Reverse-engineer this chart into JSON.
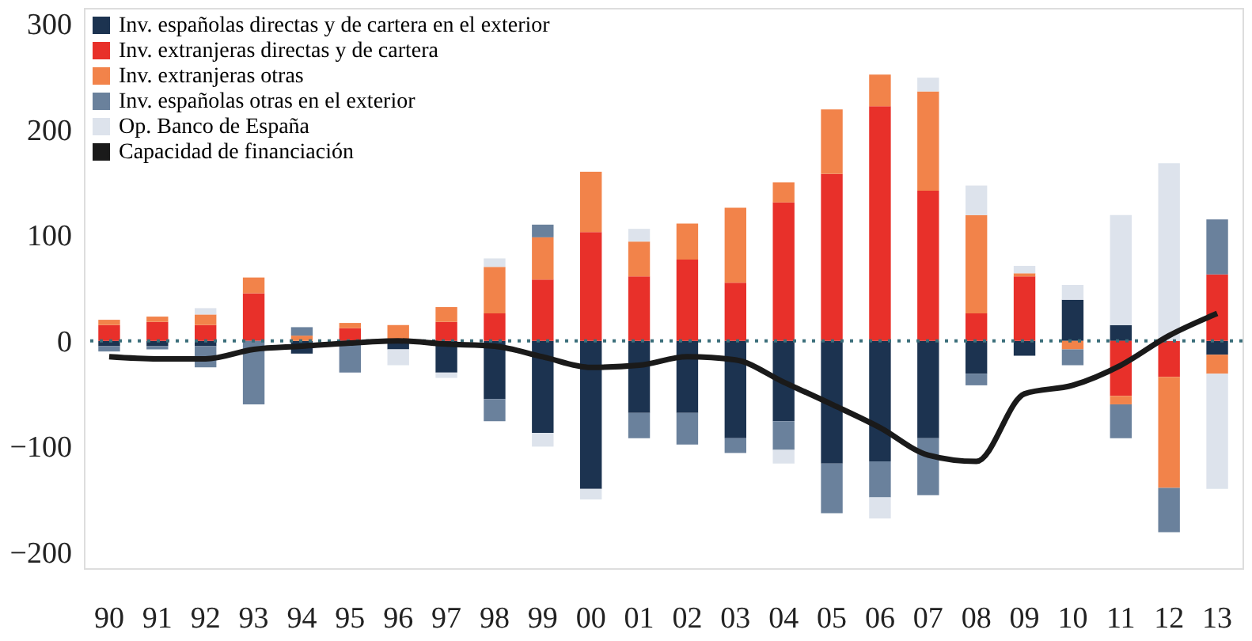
{
  "chart_data": {
    "type": "bar",
    "stacked": true,
    "categories": [
      "90",
      "91",
      "92",
      "93",
      "94",
      "95",
      "96",
      "97",
      "98",
      "99",
      "00",
      "01",
      "02",
      "03",
      "04",
      "05",
      "06",
      "07",
      "08",
      "09",
      "10",
      "11",
      "12",
      "13"
    ],
    "series": [
      {
        "name": "Inv. españolas directas y de cartera en el exterior",
        "color": "#1c3350",
        "values": [
          -5,
          -5,
          -5,
          0,
          -12,
          null,
          -8,
          -30,
          -55,
          -87,
          -140,
          -68,
          -68,
          -92,
          -76,
          -116,
          -114,
          -92,
          -31,
          -14,
          39,
          15,
          0,
          -13
        ]
      },
      {
        "name": "Inv. extranjeras directas y de cartera",
        "color": "#e8302a",
        "values": [
          15,
          18,
          15,
          45,
          0,
          12,
          null,
          18,
          26,
          58,
          103,
          61,
          77,
          55,
          131,
          158,
          222,
          142,
          26,
          61,
          0,
          -52,
          -34,
          63
        ]
      },
      {
        "name": "Inv. extranjeras otras",
        "color": "#f2834a",
        "values": [
          5,
          5,
          10,
          15,
          5,
          5,
          15,
          14,
          44,
          40,
          57,
          33,
          34,
          71,
          19,
          61,
          30,
          94,
          93,
          3,
          -8,
          -8,
          -105,
          -18
        ]
      },
      {
        "name": "Inv. españolas otras en el exterior",
        "color": "#6a819c",
        "values": [
          -5,
          -3,
          -20,
          -60,
          8,
          -30,
          0,
          0,
          -21,
          12,
          0,
          -24,
          -30,
          -14,
          -27,
          -47,
          -34,
          -54,
          -11,
          0,
          -15,
          -32,
          -42,
          52
        ]
      },
      {
        "name": "Op. Banco de España",
        "color": "#dde3ec",
        "values": [
          0,
          0,
          6,
          0,
          0,
          0,
          -15,
          -5,
          8,
          -13,
          -10,
          12,
          0,
          0,
          -13,
          0,
          -20,
          13,
          28,
          7,
          14,
          104,
          168,
          -109
        ]
      },
      {
        "name": "Capacidad de financiación",
        "type": "line",
        "color": "#1a1a1a",
        "values": [
          -15,
          -17,
          -17,
          -8,
          -5,
          -2,
          0,
          -3,
          -5,
          -15,
          -25,
          -23,
          -15,
          -18,
          -39,
          -60,
          -82,
          -108,
          -114,
          -50,
          -42,
          -23,
          5,
          26
        ]
      }
    ],
    "ylim": [
      -215,
      315
    ],
    "yticks": [
      -200,
      -100,
      0,
      100,
      200,
      300
    ],
    "grid": false,
    "legend": "top left",
    "ref_lines": [
      {
        "axis": "y",
        "value": 0,
        "color": "#3a6e7a",
        "line_style": "dotted"
      }
    ]
  }
}
